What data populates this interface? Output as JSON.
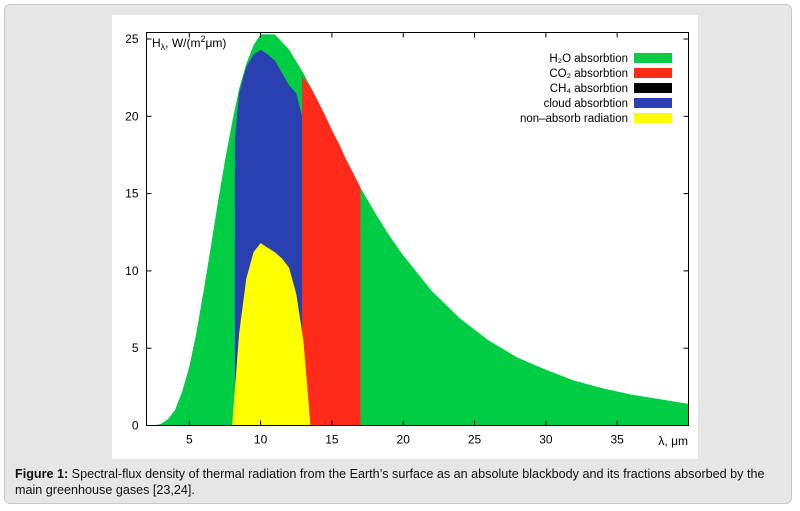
{
  "figure": {
    "caption_label": "Figure 1:",
    "caption_text": " Spectral-flux density of thermal radiation from the Earth’s surface as an absolute blackbody and its fractions absorbed by the main greenhouse gases [23,24]."
  },
  "chart_data": {
    "type": "area",
    "title": "",
    "ylabel": "H",
    "ylabel_sub": "λ",
    "ylabel_unit": ", W/(m",
    "ylabel_sup": "2",
    "ylabel_unit_end": "μm)",
    "xlabel": "λ, μm",
    "xlim": [
      2,
      40
    ],
    "ylim": [
      0,
      25
    ],
    "x_ticks": [
      "5",
      "10",
      "15",
      "20",
      "25",
      "30",
      "35"
    ],
    "y_ticks": [
      "0",
      "5",
      "10",
      "15",
      "20",
      "25"
    ],
    "legend_position": "top-right",
    "legend": [
      {
        "name": "H₂O absorbtion",
        "color": "#00cc44"
      },
      {
        "name": "CO₂ absorbtion",
        "color": "#ff2a1a"
      },
      {
        "name": "CH₄ absorbtion",
        "color": "#000000"
      },
      {
        "name": "cloud absorbtion",
        "color": "#2a3fb0"
      },
      {
        "name": "non–absorb radiation",
        "color": "#ffff00"
      }
    ],
    "series": [
      {
        "name": "H₂O absorbtion",
        "color": "#00cc44",
        "x": [
          2.5,
          3,
          3.5,
          4,
          4.5,
          5,
          5.5,
          6,
          6.5,
          7,
          7.5,
          8,
          8.5,
          9,
          9.5,
          10,
          11,
          12,
          13,
          14,
          15,
          16,
          17,
          18,
          19,
          20,
          22,
          24,
          26,
          28,
          30,
          32,
          34,
          36,
          38,
          40
        ],
        "y": [
          0,
          0.1,
          0.4,
          1.0,
          2.2,
          3.8,
          6.0,
          8.7,
          11.5,
          14.4,
          17.1,
          19.6,
          21.8,
          23.4,
          24.6,
          25.3,
          25.3,
          24.3,
          22.8,
          21.0,
          19.1,
          17.2,
          15.4,
          13.8,
          12.3,
          11.0,
          8.7,
          6.9,
          5.5,
          4.4,
          3.6,
          2.9,
          2.4,
          2.0,
          1.7,
          1.4
        ]
      },
      {
        "name": "CO₂ absorbtion",
        "color": "#ff2a1a",
        "x": [
          12.9,
          13.5,
          14,
          14.5,
          15,
          15.5,
          16,
          16.5,
          17
        ],
        "y": [
          22.6,
          21.9,
          21.0,
          20.1,
          19.1,
          18.2,
          17.2,
          16.3,
          15.4
        ]
      },
      {
        "name": "cloud absorbtion",
        "color": "#2a3fb0",
        "x": [
          8.2,
          8.5,
          9,
          9.5,
          10,
          10.5,
          11,
          11.5,
          12,
          12.5,
          12.9
        ],
        "y": [
          18.5,
          21.5,
          23.2,
          24.0,
          24.3,
          24.0,
          23.6,
          22.8,
          22.0,
          21.5,
          20.0
        ]
      },
      {
        "name": "non–absorb radiation",
        "color": "#ffff00",
        "x": [
          8,
          8.5,
          9,
          9.5,
          10,
          10.5,
          11,
          11.5,
          12,
          12.5,
          13,
          13.5
        ],
        "y": [
          0,
          6.0,
          9.5,
          11.2,
          11.8,
          11.5,
          11.2,
          10.8,
          10.2,
          8.5,
          5.5,
          0
        ]
      }
    ]
  }
}
